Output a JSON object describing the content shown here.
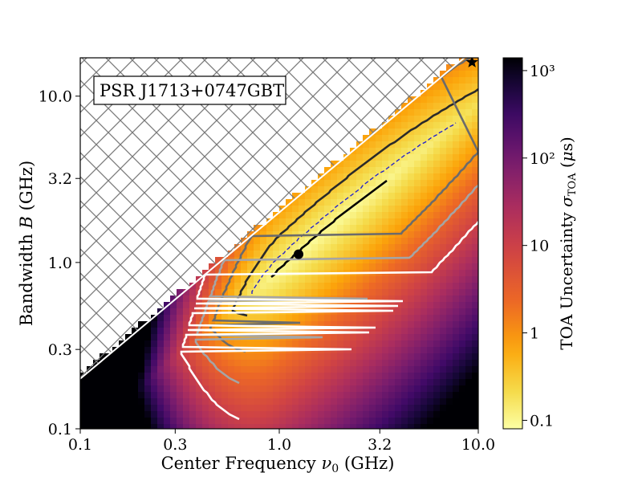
{
  "chart_data": {
    "type": "heatmap",
    "title": "",
    "annotation": "PSR J1713+0747GBT",
    "xlabel": "Center Frequency ν₀ (GHz)",
    "ylabel": "Bandwidth B (GHz)",
    "x_scale": "log",
    "y_scale": "log",
    "xlim": [
      0.1,
      10.0
    ],
    "ylim": [
      0.1,
      17.0
    ],
    "x_ticks": [
      0.1,
      0.3,
      1.0,
      3.2,
      10.0
    ],
    "x_tick_labels": [
      "0.1",
      "0.3",
      "1.0",
      "3.2",
      "10.0"
    ],
    "y_ticks": [
      0.1,
      0.3,
      1.0,
      3.2,
      10.0
    ],
    "y_tick_labels": [
      "0.1",
      "0.3",
      "1.0",
      "3.2",
      "10.0"
    ],
    "excluded_region": "B > 2ν₀ (hatched)",
    "colorbar": {
      "label": "TOA Uncertainty σ_TOA (μs)",
      "scale": "log",
      "colormap": "inferno_r",
      "range": [
        0.08,
        1400
      ],
      "ticks": [
        0.1,
        1,
        10,
        100,
        1000
      ],
      "tick_labels": [
        "0.1",
        "1",
        "10",
        "10²",
        "10³"
      ]
    },
    "markers": [
      {
        "name": "optimum",
        "symbol": "circle",
        "x": 1.25,
        "y": 1.12
      },
      {
        "name": "maximum",
        "symbol": "star",
        "x": 9.3,
        "y": 16.0
      }
    ],
    "contours": [
      {
        "level": 0.1,
        "color": "#000000",
        "style": "solid"
      },
      {
        "level": 0.15,
        "color": "#2222cc",
        "style": "dashed"
      },
      {
        "level": 0.3,
        "color": "#2a2a2a",
        "style": "solid"
      },
      {
        "level": 1.0,
        "color": "#6b6b6b",
        "style": "solid"
      },
      {
        "level": 3.0,
        "color": "#a5a5a5",
        "style": "solid"
      },
      {
        "level": 10.0,
        "color": "#ffffff",
        "style": "solid"
      }
    ]
  }
}
